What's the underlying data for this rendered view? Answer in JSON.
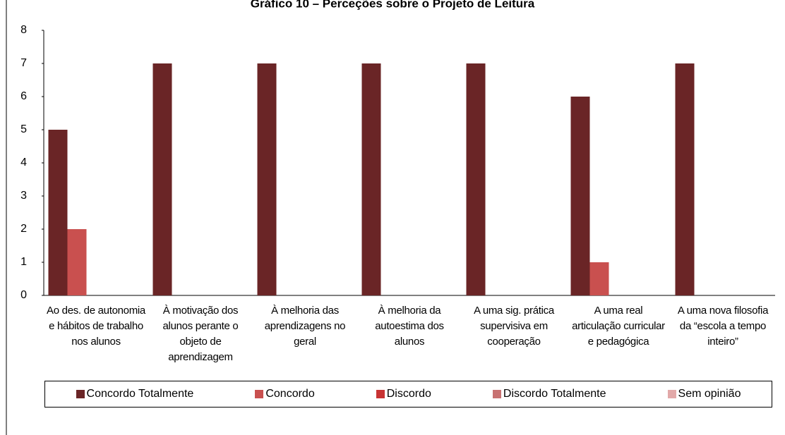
{
  "chart_data": {
    "type": "bar",
    "title": "Gráfico 10 – Perceções sobre o Projeto de Leitura",
    "categories": [
      "Ao des. de autonomia e hábitos de trabalho nos alunos",
      "À motivação dos alunos perante o objeto de aprendizagem",
      "À melhoria das aprendizagens no geral",
      "À melhoria da autoestima dos alunos",
      "A uma sig. prática supervisiva em cooperação",
      "A uma real articulação curricular e pedagógica",
      "A uma nova filosofia da “escola a tempo inteiro”"
    ],
    "series": [
      {
        "name": "Concordo Totalmente",
        "color": "#6a2526",
        "values": [
          5,
          7,
          7,
          7,
          7,
          6,
          7
        ]
      },
      {
        "name": "Concordo",
        "color": "#c9504f",
        "values": [
          2,
          0,
          0,
          0,
          0,
          1,
          0
        ]
      },
      {
        "name": "Discordo",
        "color": "#c83333",
        "values": [
          0,
          0,
          0,
          0,
          0,
          0,
          0
        ]
      },
      {
        "name": "Discordo Totalmente",
        "color": "#c87272",
        "values": [
          0,
          0,
          0,
          0,
          0,
          0,
          0
        ]
      },
      {
        "name": "Sem opinião",
        "color": "#e2a9a9",
        "values": [
          0,
          0,
          0,
          0,
          0,
          0,
          0
        ]
      }
    ],
    "ylim": [
      0,
      8
    ],
    "yticks": [
      0,
      1,
      2,
      3,
      4,
      5,
      6,
      7,
      8
    ],
    "grid": false,
    "legend": "bottom"
  }
}
